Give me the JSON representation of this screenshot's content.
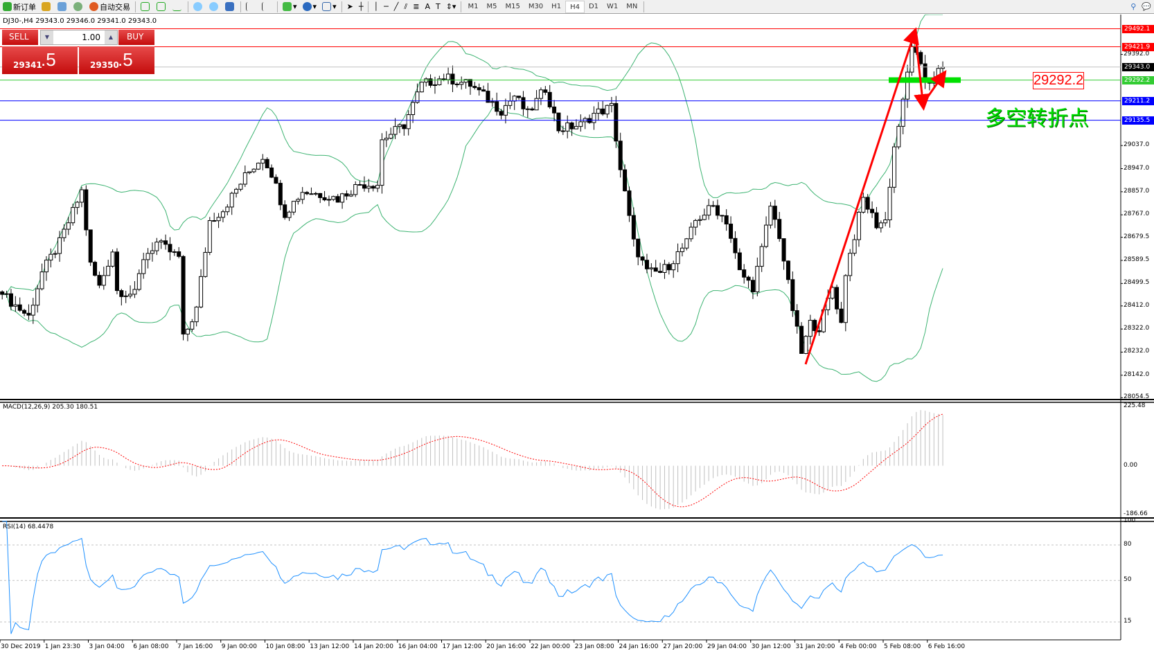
{
  "toolbar": {
    "new_order": "新订单",
    "auto_trading": "自动交易",
    "timeframes": [
      "M1",
      "M5",
      "M15",
      "M30",
      "H1",
      "H4",
      "D1",
      "W1",
      "MN"
    ],
    "active_timeframe": "H4"
  },
  "chart_header": "DJ30-,H4  29343.0 29346.0 29341.0 29343.0",
  "trade_panel": {
    "sell_label": "SELL",
    "buy_label": "BUY",
    "lots": "1.00",
    "sell_big": "29341",
    "sell_small": ".5",
    "buy_big": "29350",
    "buy_small": ".5"
  },
  "annotations": {
    "level_box": "29292.2",
    "note": "多空转折点"
  },
  "colors": {
    "bull_bear_candle": "#000000",
    "bands": "#3cb371",
    "resistance": "#ff0000",
    "support": "#0000ff",
    "pivot": "#00dd00",
    "macd_signal": "#ff0000",
    "macd_hist": "#c0c0c0",
    "rsi": "#1e90ff"
  },
  "chart_data": {
    "type": "candlestick",
    "symbol": "DJ30-",
    "timeframe": "H4",
    "ylim": [
      28054.5,
      29492.1
    ],
    "price_ticks": [
      "29392.0",
      "29037.0",
      "28947.0",
      "28857.0",
      "28767.0",
      "28679.5",
      "28589.5",
      "28499.5",
      "28412.0",
      "28322.0",
      "28232.0",
      "28142.0",
      "28054.5"
    ],
    "time_labels": [
      "30 Dec 2019",
      "1 Jan 23:30",
      "3 Jan 04:00",
      "6 Jan 08:00",
      "7 Jan 16:00",
      "9 Jan 00:00",
      "10 Jan 08:00",
      "13 Jan 12:00",
      "14 Jan 20:00",
      "16 Jan 04:00",
      "17 Jan 12:00",
      "20 Jan 16:00",
      "22 Jan 00:00",
      "23 Jan 08:00",
      "24 Jan 16:00",
      "27 Jan 20:00",
      "29 Jan 04:00",
      "30 Jan 12:00",
      "31 Jan 20:00",
      "4 Feb 00:00",
      "5 Feb 08:00",
      "6 Feb 16:00"
    ],
    "close_path": [
      [
        0,
        28457
      ],
      [
        6,
        28371
      ],
      [
        9,
        28543
      ],
      [
        13,
        28658
      ],
      [
        18,
        28859
      ],
      [
        20,
        28572
      ],
      [
        22,
        28486
      ],
      [
        25,
        28629
      ],
      [
        26,
        28472
      ],
      [
        30,
        28457
      ],
      [
        32,
        28601
      ],
      [
        35,
        28658
      ],
      [
        40,
        28601
      ],
      [
        41,
        28285
      ],
      [
        44,
        28400
      ],
      [
        47,
        28744
      ],
      [
        50,
        28787
      ],
      [
        55,
        28916
      ],
      [
        59,
        28996
      ],
      [
        61,
        28930
      ],
      [
        64,
        28773
      ],
      [
        68,
        28859
      ],
      [
        73,
        28844
      ],
      [
        76,
        28830
      ],
      [
        81,
        28887
      ],
      [
        85,
        28887
      ],
      [
        86,
        29060
      ],
      [
        91,
        29117
      ],
      [
        95,
        29274
      ],
      [
        100,
        29303
      ],
      [
        106,
        29274
      ],
      [
        113,
        29174
      ],
      [
        116,
        29231
      ],
      [
        119,
        29160
      ],
      [
        123,
        29260
      ],
      [
        126,
        29102
      ],
      [
        131,
        29117
      ],
      [
        134,
        29160
      ],
      [
        138,
        29188
      ],
      [
        140,
        28945
      ],
      [
        143,
        28658
      ],
      [
        146,
        28543
      ],
      [
        149,
        28543
      ],
      [
        151,
        28572
      ],
      [
        155,
        28658
      ],
      [
        157,
        28744
      ],
      [
        161,
        28801
      ],
      [
        164,
        28744
      ],
      [
        167,
        28543
      ],
      [
        170,
        28486
      ],
      [
        172,
        28629
      ],
      [
        174,
        28801
      ],
      [
        176,
        28687
      ],
      [
        179,
        28400
      ],
      [
        181,
        28228
      ],
      [
        183,
        28343
      ],
      [
        185,
        28328
      ],
      [
        188,
        28486
      ],
      [
        190,
        28343
      ],
      [
        191,
        28543
      ],
      [
        195,
        28830
      ],
      [
        198,
        28730
      ],
      [
        200,
        28744
      ],
      [
        202,
        29031
      ],
      [
        204,
        29203
      ],
      [
        206,
        29432
      ],
      [
        209,
        29289
      ],
      [
        210,
        29289
      ],
      [
        213,
        29343
      ]
    ],
    "horizontal_lines": [
      {
        "price": "29492.1",
        "color": "#ff0000"
      },
      {
        "price": "29421.9",
        "color": "#ff0000"
      },
      {
        "price": "29343.0",
        "color": "#000000"
      },
      {
        "price": "29292.2",
        "color": "#33cc33"
      },
      {
        "price": "29211.2",
        "color": "#0000ff"
      },
      {
        "price": "29135.5",
        "color": "#0000ff"
      }
    ],
    "indicators": {
      "macd": {
        "label": "MACD(12,26,9) 205.30 180.51",
        "ticks": [
          "225.48",
          "0.00",
          "-186.66"
        ],
        "range": [
          -186.66,
          225.48
        ]
      },
      "rsi": {
        "label": "RSI(14) 68.4478",
        "ticks": [
          "100",
          "80",
          "50",
          "15"
        ],
        "levels": [
          80,
          50,
          15
        ]
      }
    }
  }
}
